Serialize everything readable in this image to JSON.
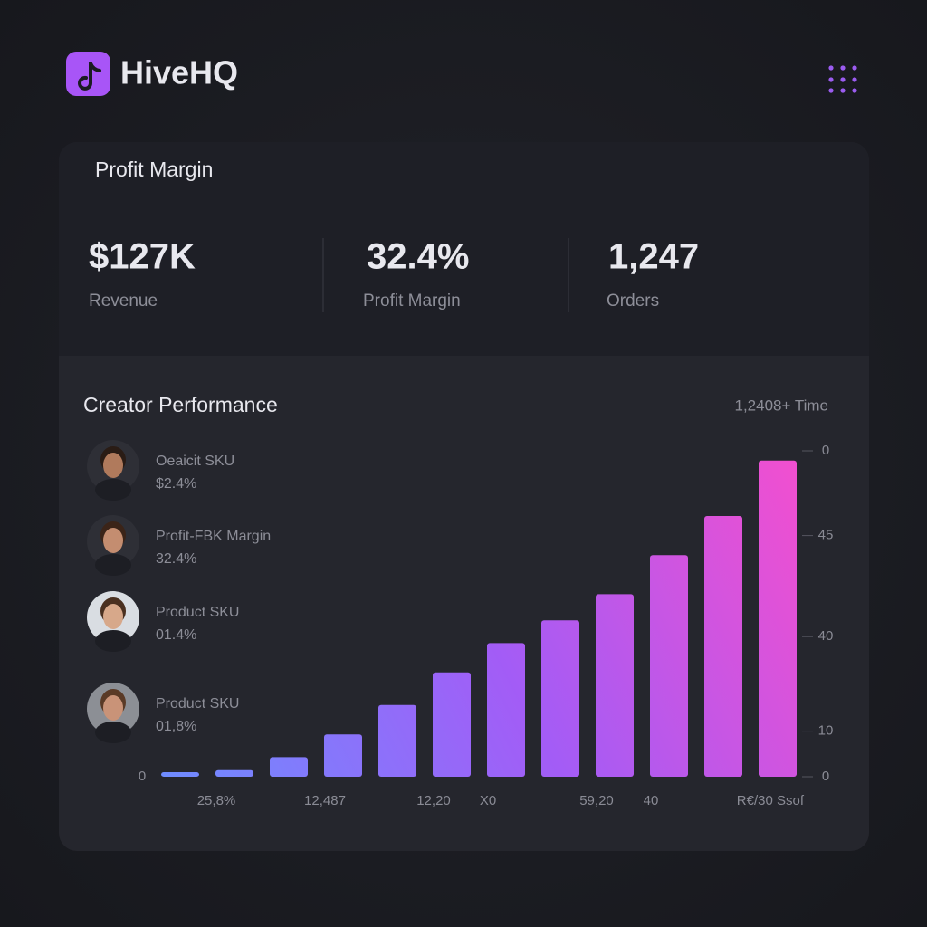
{
  "header": {
    "brand": "HiveHQ"
  },
  "summary": {
    "title": "Profit Margin",
    "stats": [
      {
        "value": "$127K",
        "label": "Revenue"
      },
      {
        "value": "32.4%",
        "label": "Profit Margin"
      },
      {
        "value": "1,247",
        "label": "Orders"
      }
    ]
  },
  "performance": {
    "title": "Creator Performance",
    "meta": "1,2408+ Time",
    "creators": [
      {
        "name": "Oeaicit SKU",
        "stat": "$2.4%"
      },
      {
        "name": "Profit-FBK Margin",
        "stat": "32.4%"
      },
      {
        "name": "Product SKU",
        "stat": "01.4%"
      },
      {
        "name": "Product SKU",
        "stat": "01,8%"
      }
    ]
  },
  "chart_data": {
    "type": "bar",
    "categories": [
      null,
      "25,8%",
      null,
      "12,487",
      null,
      "12,20",
      "X0",
      null,
      "59,20",
      "40",
      null,
      "R€/30 Ssof"
    ],
    "values": [
      1.4,
      2,
      6,
      13,
      22,
      32,
      41,
      48,
      56,
      68,
      80,
      97
    ],
    "gradient": [
      "#6f8cff",
      "#a35cf6",
      "#f24fcf"
    ],
    "origin_label": "0",
    "ylim": [
      0,
      100
    ],
    "yticks": [
      0,
      {
        "value": 14,
        "label": "10"
      },
      {
        "value": 43,
        "label": "40"
      },
      {
        "value": 74,
        "label": "45"
      },
      {
        "value": 100,
        "label": "0"
      }
    ]
  }
}
